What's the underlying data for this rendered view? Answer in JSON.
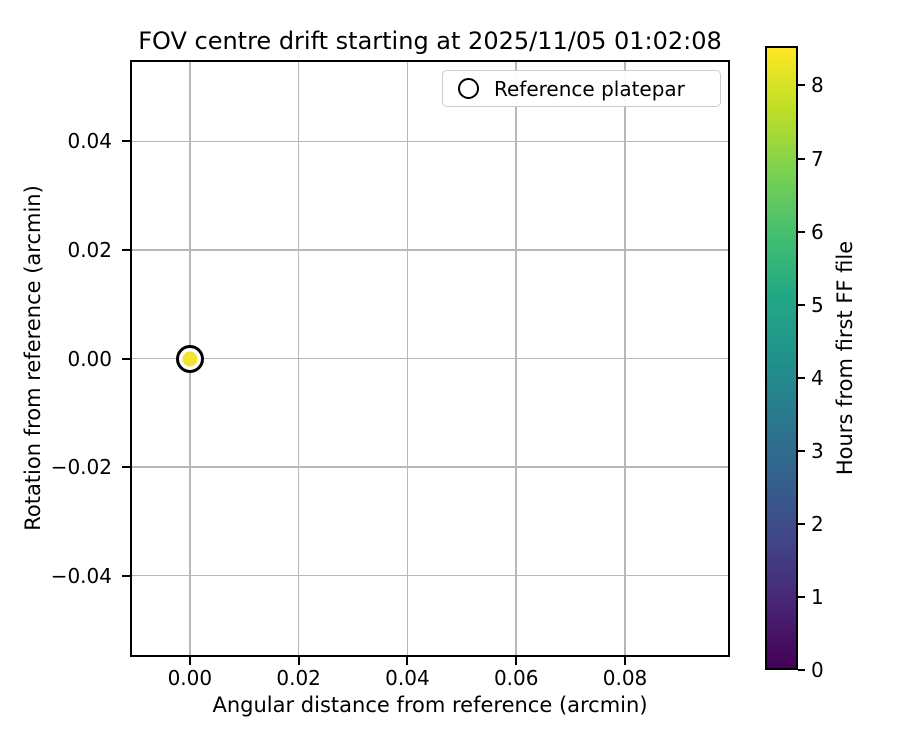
{
  "window": {
    "title": "FOV centre drift starting at 2025/11/05 01:02:08"
  },
  "chart_data": {
    "type": "scatter",
    "title": "FOV centre drift starting at 2025/11/05 01:02:08",
    "xlabel": "Angular distance from reference (arcmin)",
    "ylabel": "Rotation from reference (arcmin)",
    "xlim": [
      -0.011,
      0.0993
    ],
    "ylim": [
      -0.055,
      0.055
    ],
    "xticks": [
      0.0,
      0.02,
      0.04,
      0.06,
      0.08
    ],
    "xtick_labels": [
      "0.00",
      "0.02",
      "0.04",
      "0.06",
      "0.08"
    ],
    "yticks": [
      0.04,
      0.02,
      0.0,
      -0.02,
      -0.04
    ],
    "ytick_labels": [
      "0.04",
      "0.02",
      "0.00",
      "−0.02",
      "−0.04"
    ],
    "grid": true,
    "aspect": "equal",
    "points": [
      {
        "x": 0.0,
        "y": 0.0,
        "hours": 8.54,
        "color": "#f2e42f"
      }
    ],
    "reference_marker": {
      "x": 0.0,
      "y": 0.0,
      "label": "Reference platepar"
    },
    "legend": {
      "position": "upper right",
      "entries": [
        "Reference platepar"
      ]
    },
    "colorbar": {
      "label": "Hours from first FF file",
      "vmin": 0,
      "vmax": 8.54,
      "ticks": [
        0,
        1,
        2,
        3,
        4,
        5,
        6,
        7,
        8
      ],
      "tick_labels": [
        "0",
        "1",
        "2",
        "3",
        "4",
        "5",
        "6",
        "7",
        "8"
      ],
      "colormap": "viridis",
      "colormap_stops": [
        "#440154",
        "#482475",
        "#414487",
        "#355f8d",
        "#2a788e",
        "#21918c",
        "#22a884",
        "#44bf70",
        "#7ad151",
        "#bddf26",
        "#fde725"
      ]
    },
    "colors": {
      "grid": "#b8b8b8",
      "spine": "#000000",
      "background": "#ffffff",
      "marker_edge": "#000000"
    }
  }
}
